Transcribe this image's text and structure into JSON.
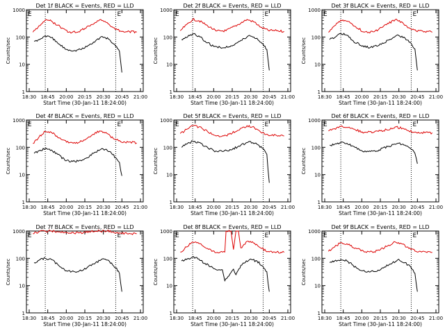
{
  "figure": {
    "ylabel": "Counts/sec",
    "xlabel": "Start Time (30-Jan-11 18:24:00)",
    "e_marker": "E",
    "colors": {
      "events": "#000000",
      "lld": "#dd0000",
      "axes": "#000000",
      "background": "#ffffff"
    }
  },
  "chart_data": [
    {
      "type": "line",
      "title": "Det 1f BLACK = Events, RED = LLD",
      "x_ticks": [
        "18:30",
        "18:45",
        "20:00",
        "20:15",
        "20:30",
        "20:45",
        "21:00"
      ],
      "y_ticks": [
        "1",
        "10",
        "100",
        "1000"
      ],
      "yscale": "log",
      "ylim": [
        1,
        1000
      ],
      "xlabel": "Start Time (30-Jan-11 18:24:00)",
      "ylabel": "Counts/sec",
      "vlines": [
        "18:43",
        "20:40"
      ],
      "series": [
        {
          "color": "#dd0000",
          "x": [
            "18:33",
            "18:38",
            "18:43",
            "18:48",
            "18:55",
            "20:02",
            "20:10",
            "20:20",
            "20:27",
            "20:33",
            "20:38",
            "20:44",
            "20:51",
            "20:57"
          ],
          "y": [
            150,
            260,
            420,
            380,
            240,
            150,
            155,
            280,
            430,
            340,
            220,
            165,
            160,
            150
          ]
        },
        {
          "color": "#000000",
          "x": [
            "18:34",
            "18:38",
            "18:43",
            "18:48",
            "18:53",
            "20:00",
            "20:07",
            "20:14",
            "20:22",
            "20:29",
            "20:35",
            "20:40",
            "20:43",
            "20:44",
            "20:45"
          ],
          "y": [
            70,
            80,
            110,
            95,
            60,
            35,
            32,
            38,
            65,
            105,
            80,
            45,
            30,
            12,
            5
          ]
        }
      ]
    },
    {
      "type": "line",
      "title": "Det 2f BLACK = Events, RED = LLD",
      "x_ticks": [
        "18:30",
        "18:45",
        "20:00",
        "20:15",
        "20:30",
        "20:45",
        "21:00"
      ],
      "y_ticks": [
        "1",
        "10",
        "100",
        "1000"
      ],
      "yscale": "log",
      "ylim": [
        1,
        1000
      ],
      "xlabel": "Start Time (30-Jan-11 18:24:00)",
      "ylabel": "Counts/sec",
      "vlines": [
        "18:43",
        "20:40"
      ],
      "series": [
        {
          "color": "#dd0000",
          "x": [
            "18:33",
            "18:38",
            "18:43",
            "18:48",
            "18:55",
            "20:02",
            "20:10",
            "20:20",
            "20:27",
            "20:33",
            "20:38",
            "20:44",
            "20:51",
            "20:57"
          ],
          "y": [
            170,
            280,
            440,
            400,
            260,
            165,
            170,
            290,
            440,
            350,
            230,
            175,
            170,
            160
          ]
        },
        {
          "color": "#000000",
          "x": [
            "18:34",
            "18:38",
            "18:43",
            "18:48",
            "18:53",
            "20:00",
            "20:07",
            "20:14",
            "20:22",
            "20:29",
            "20:35",
            "20:40",
            "20:43",
            "20:44",
            "20:45"
          ],
          "y": [
            80,
            95,
            130,
            110,
            70,
            45,
            40,
            48,
            75,
            115,
            90,
            55,
            35,
            14,
            6
          ]
        }
      ]
    },
    {
      "type": "line",
      "title": "Det 3f BLACK = Events, RED = LLD",
      "x_ticks": [
        "18:30",
        "18:45",
        "20:00",
        "20:15",
        "20:30",
        "20:45",
        "21:00"
      ],
      "y_ticks": [
        "1",
        "10",
        "100",
        "1000"
      ],
      "yscale": "log",
      "ylim": [
        1,
        1000
      ],
      "xlabel": "Start Time (30-Jan-11 18:24:00)",
      "ylabel": "Counts/sec",
      "vlines": [
        "18:43",
        "20:40"
      ],
      "series": [
        {
          "color": "#dd0000",
          "x": [
            "18:33",
            "18:38",
            "18:43",
            "18:48",
            "18:55",
            "20:02",
            "20:10",
            "20:20",
            "20:27",
            "20:33",
            "20:38",
            "20:44",
            "20:51",
            "20:57"
          ],
          "y": [
            150,
            260,
            420,
            380,
            240,
            150,
            155,
            280,
            430,
            340,
            220,
            165,
            160,
            150
          ]
        },
        {
          "color": "#000000",
          "x": [
            "18:34",
            "18:38",
            "18:43",
            "18:48",
            "18:53",
            "20:00",
            "20:07",
            "20:14",
            "20:22",
            "20:29",
            "20:35",
            "20:40",
            "20:43",
            "20:44",
            "20:45"
          ],
          "y": [
            80,
            95,
            135,
            115,
            72,
            46,
            42,
            50,
            78,
            120,
            92,
            58,
            36,
            14,
            6
          ]
        }
      ]
    },
    {
      "type": "line",
      "title": "Det 4f BLACK = Events, RED = LLD",
      "x_ticks": [
        "18:30",
        "18:45",
        "20:00",
        "20:15",
        "20:30",
        "20:45",
        "21:00"
      ],
      "y_ticks": [
        "1",
        "10",
        "100",
        "1000"
      ],
      "yscale": "log",
      "ylim": [
        1,
        1000
      ],
      "xlabel": "Start Time (30-Jan-11 18:24:00)",
      "ylabel": "Counts/sec",
      "vlines": [
        "18:43",
        "20:40"
      ],
      "series": [
        {
          "color": "#dd0000",
          "x": [
            "18:33",
            "18:38",
            "18:43",
            "18:48",
            "18:55",
            "20:02",
            "20:10",
            "20:20",
            "20:27",
            "20:33",
            "20:38",
            "20:44",
            "20:51",
            "20:57"
          ],
          "y": [
            140,
            240,
            380,
            350,
            220,
            145,
            150,
            260,
            400,
            320,
            210,
            160,
            155,
            145
          ]
        },
        {
          "color": "#000000",
          "x": [
            "18:34",
            "18:38",
            "18:43",
            "18:48",
            "18:53",
            "20:00",
            "20:07",
            "20:14",
            "20:22",
            "20:29",
            "20:35",
            "20:40",
            "20:43",
            "20:44",
            "20:45"
          ],
          "y": [
            60,
            75,
            90,
            80,
            55,
            32,
            30,
            35,
            60,
            90,
            70,
            42,
            28,
            14,
            9
          ]
        }
      ]
    },
    {
      "type": "line",
      "title": "Det 5f BLACK = Events, RED = LLD",
      "x_ticks": [
        "18:30",
        "18:45",
        "20:00",
        "20:15",
        "20:30",
        "20:45",
        "21:00"
      ],
      "y_ticks": [
        "1",
        "10",
        "100",
        "1000"
      ],
      "yscale": "log",
      "ylim": [
        1,
        1000
      ],
      "xlabel": "Start Time (30-Jan-11 18:24:00)",
      "ylabel": "Counts/sec",
      "vlines": [
        "18:43",
        "20:40"
      ],
      "series": [
        {
          "color": "#dd0000",
          "x": [
            "18:33",
            "18:38",
            "18:43",
            "18:48",
            "18:55",
            "20:02",
            "20:10",
            "20:20",
            "20:27",
            "20:33",
            "20:38",
            "20:44",
            "20:51",
            "20:57"
          ],
          "y": [
            320,
            450,
            620,
            560,
            380,
            260,
            270,
            420,
            620,
            520,
            360,
            280,
            270,
            260
          ]
        },
        {
          "color": "#000000",
          "x": [
            "18:34",
            "18:38",
            "18:43",
            "18:48",
            "18:53",
            "20:00",
            "20:07",
            "20:14",
            "20:22",
            "20:29",
            "20:35",
            "20:40",
            "20:43",
            "20:44",
            "20:45"
          ],
          "y": [
            100,
            130,
            170,
            150,
            110,
            75,
            70,
            80,
            120,
            165,
            130,
            90,
            55,
            14,
            5
          ]
        }
      ]
    },
    {
      "type": "line",
      "title": "Det 6f BLACK = Events, RED = LLD",
      "x_ticks": [
        "18:30",
        "18:45",
        "20:00",
        "20:15",
        "20:30",
        "20:45",
        "21:00"
      ],
      "y_ticks": [
        "1",
        "10",
        "100",
        "1000"
      ],
      "yscale": "log",
      "ylim": [
        1,
        1000
      ],
      "xlabel": "Start Time (30-Jan-11 18:24:00)",
      "ylabel": "Counts/sec",
      "vlines": [
        "18:43",
        "20:40"
      ],
      "series": [
        {
          "color": "#dd0000",
          "x": [
            "18:33",
            "18:38",
            "18:43",
            "18:48",
            "18:55",
            "20:02",
            "20:10",
            "20:20",
            "20:27",
            "20:33",
            "20:38",
            "20:44",
            "20:51",
            "20:57"
          ],
          "y": [
            400,
            480,
            580,
            540,
            430,
            350,
            360,
            440,
            560,
            500,
            400,
            350,
            340,
            340
          ]
        },
        {
          "color": "#000000",
          "x": [
            "18:34",
            "18:38",
            "18:43",
            "18:48",
            "18:53",
            "20:00",
            "20:07",
            "20:14",
            "20:22",
            "20:29",
            "20:35",
            "20:40",
            "20:43",
            "20:44",
            "20:45"
          ],
          "y": [
            120,
            130,
            150,
            140,
            110,
            75,
            70,
            80,
            110,
            140,
            120,
            85,
            60,
            40,
            25
          ]
        }
      ]
    },
    {
      "type": "line",
      "title": "Det 7f BLACK = Events, RED = LLD",
      "x_ticks": [
        "18:30",
        "18:45",
        "20:00",
        "20:15",
        "20:30",
        "20:45",
        "21:00"
      ],
      "y_ticks": [
        "1",
        "10",
        "100",
        "1000"
      ],
      "yscale": "log",
      "ylim": [
        1,
        1000
      ],
      "xlabel": "Start Time (30-Jan-11 18:24:00)",
      "ylabel": "Counts/sec",
      "vlines": [
        "18:43",
        "20:40"
      ],
      "series": [
        {
          "color": "#dd0000",
          "x": [
            "18:33",
            "18:38",
            "18:43",
            "18:48",
            "18:55",
            "20:02",
            "20:10",
            "20:20",
            "20:27",
            "20:33",
            "20:38",
            "20:44",
            "20:51",
            "20:57"
          ],
          "y": [
            800,
            950,
            1000,
            1000,
            920,
            820,
            850,
            950,
            1000,
            1000,
            930,
            840,
            820,
            800
          ]
        },
        {
          "color": "#000000",
          "x": [
            "18:34",
            "18:38",
            "18:43",
            "18:48",
            "18:53",
            "20:00",
            "20:07",
            "20:14",
            "20:22",
            "20:29",
            "20:35",
            "20:40",
            "20:43",
            "20:44",
            "20:45"
          ],
          "y": [
            70,
            85,
            100,
            90,
            60,
            35,
            32,
            38,
            62,
            95,
            75,
            45,
            28,
            12,
            6
          ]
        }
      ]
    },
    {
      "type": "line",
      "title": "Det 8f BLACK = Events, RED = LLD",
      "x_ticks": [
        "18:30",
        "18:45",
        "20:00",
        "20:15",
        "20:30",
        "20:45",
        "21:00"
      ],
      "y_ticks": [
        "1",
        "10",
        "100",
        "1000"
      ],
      "yscale": "log",
      "ylim": [
        1,
        1000
      ],
      "xlabel": "Start Time (30-Jan-11 18:24:00)",
      "ylabel": "Counts/sec",
      "vlines": [
        "18:43",
        "20:40"
      ],
      "series": [
        {
          "color": "#dd0000",
          "x": [
            "18:33",
            "18:38",
            "18:43",
            "18:48",
            "18:55",
            "20:02",
            "20:09",
            "20:10",
            "20:14",
            "20:16",
            "20:18",
            "20:20",
            "20:22",
            "20:27",
            "20:33",
            "20:38",
            "20:44",
            "20:51",
            "20:57"
          ],
          "y": [
            170,
            260,
            400,
            350,
            230,
            160,
            170,
            1000,
            1000,
            210,
            1000,
            1000,
            240,
            420,
            360,
            240,
            180,
            170,
            165
          ]
        },
        {
          "color": "#000000",
          "x": [
            "18:34",
            "18:38",
            "18:43",
            "18:48",
            "18:53",
            "20:00",
            "20:07",
            "20:09",
            "20:14",
            "20:16",
            "20:18",
            "20:22",
            "20:29",
            "20:35",
            "20:40",
            "20:43",
            "20:44",
            "20:45"
          ],
          "y": [
            80,
            90,
            110,
            95,
            65,
            42,
            38,
            15,
            30,
            40,
            25,
            55,
            90,
            80,
            50,
            32,
            12,
            6
          ]
        }
      ]
    },
    {
      "type": "line",
      "title": "Det 9f BLACK = Events, RED = LLD",
      "x_ticks": [
        "18:30",
        "18:45",
        "20:00",
        "20:15",
        "20:30",
        "20:45",
        "21:00"
      ],
      "y_ticks": [
        "1",
        "10",
        "100",
        "1000"
      ],
      "yscale": "log",
      "ylim": [
        1,
        1000
      ],
      "xlabel": "Start Time (30-Jan-11 18:24:00)",
      "ylabel": "Counts/sec",
      "vlines": [
        "18:43",
        "20:40"
      ],
      "series": [
        {
          "color": "#dd0000",
          "x": [
            "18:33",
            "18:38",
            "18:43",
            "18:48",
            "18:55",
            "20:02",
            "20:10",
            "20:20",
            "20:27",
            "20:33",
            "20:38",
            "20:44",
            "20:51",
            "20:57"
          ],
          "y": [
            180,
            260,
            380,
            340,
            240,
            170,
            175,
            270,
            400,
            330,
            230,
            180,
            175,
            165
          ]
        },
        {
          "color": "#000000",
          "x": [
            "18:34",
            "18:38",
            "18:43",
            "18:48",
            "18:53",
            "20:00",
            "20:07",
            "20:14",
            "20:22",
            "20:29",
            "20:35",
            "20:40",
            "20:43",
            "20:44",
            "20:45"
          ],
          "y": [
            70,
            80,
            90,
            80,
            55,
            35,
            32,
            36,
            58,
            88,
            70,
            45,
            28,
            12,
            6
          ]
        }
      ]
    }
  ]
}
